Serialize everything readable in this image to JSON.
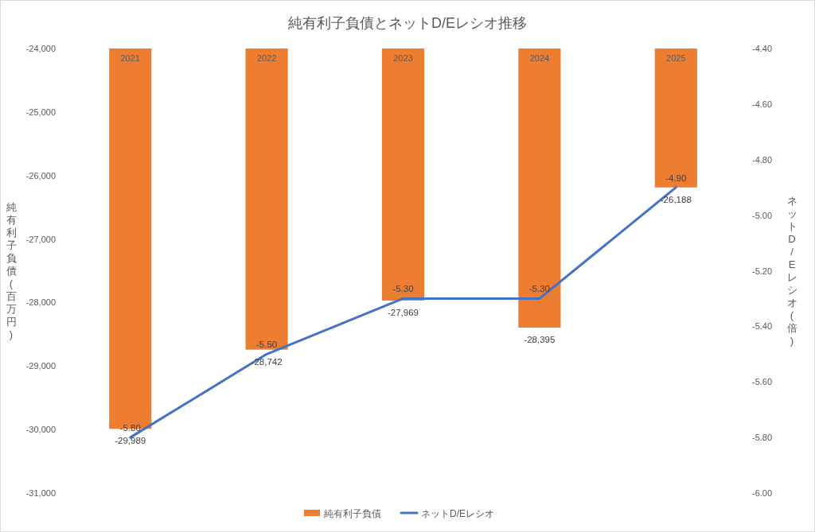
{
  "chart_data": {
    "type": "bar",
    "title": "純有利子負債とネットD/Eレシオ推移",
    "categories": [
      "2021",
      "2022",
      "2023",
      "2024",
      "2025"
    ],
    "ylabel": "純有利子負債(百万円)",
    "y2label": "ネットD/Eレシオ(倍)",
    "ylim": [
      -31000,
      -24000
    ],
    "yticks": [
      {
        "value": -31000,
        "label": "-31,000"
      },
      {
        "value": -30000,
        "label": "-30,000"
      },
      {
        "value": -29000,
        "label": "-29,000"
      },
      {
        "value": -28000,
        "label": "-28,000"
      },
      {
        "value": -27000,
        "label": "-27,000"
      },
      {
        "value": -26000,
        "label": "-26,000"
      },
      {
        "value": -25000,
        "label": "-25,000"
      },
      {
        "value": -24000,
        "label": "-24,000"
      }
    ],
    "y2lim": [
      -6.0,
      -4.4
    ],
    "y2ticks": [
      {
        "value": -6.0,
        "label": "-6.00"
      },
      {
        "value": -5.8,
        "label": "-5.80"
      },
      {
        "value": -5.6,
        "label": "-5.60"
      },
      {
        "value": -5.4,
        "label": "-5.40"
      },
      {
        "value": -5.2,
        "label": "-5.20"
      },
      {
        "value": -5.0,
        "label": "-5.00"
      },
      {
        "value": -4.8,
        "label": "-4.80"
      },
      {
        "value": -4.6,
        "label": "-4.60"
      },
      {
        "value": -4.4,
        "label": "-4.40"
      }
    ],
    "series": [
      {
        "name": "純有利子負債",
        "color": "#ed7d31",
        "values": [
          -29989,
          -28742,
          -27969,
          -28395,
          -26188
        ],
        "value_labels": [
          "-29,989",
          "-28,742",
          "-27,969",
          "-28,395",
          "-26,188"
        ]
      },
      {
        "name": "ネットD/Eレシオ",
        "type": "line",
        "axis": "y2",
        "color": "#4472c4",
        "values": [
          -5.8,
          -5.5,
          -5.3,
          -5.3,
          -4.9
        ],
        "value_labels": [
          "-5.80",
          "-5.50",
          "-5.30",
          "-5.30",
          "-4.90"
        ]
      }
    ],
    "legend": "bottom",
    "grid": false
  }
}
